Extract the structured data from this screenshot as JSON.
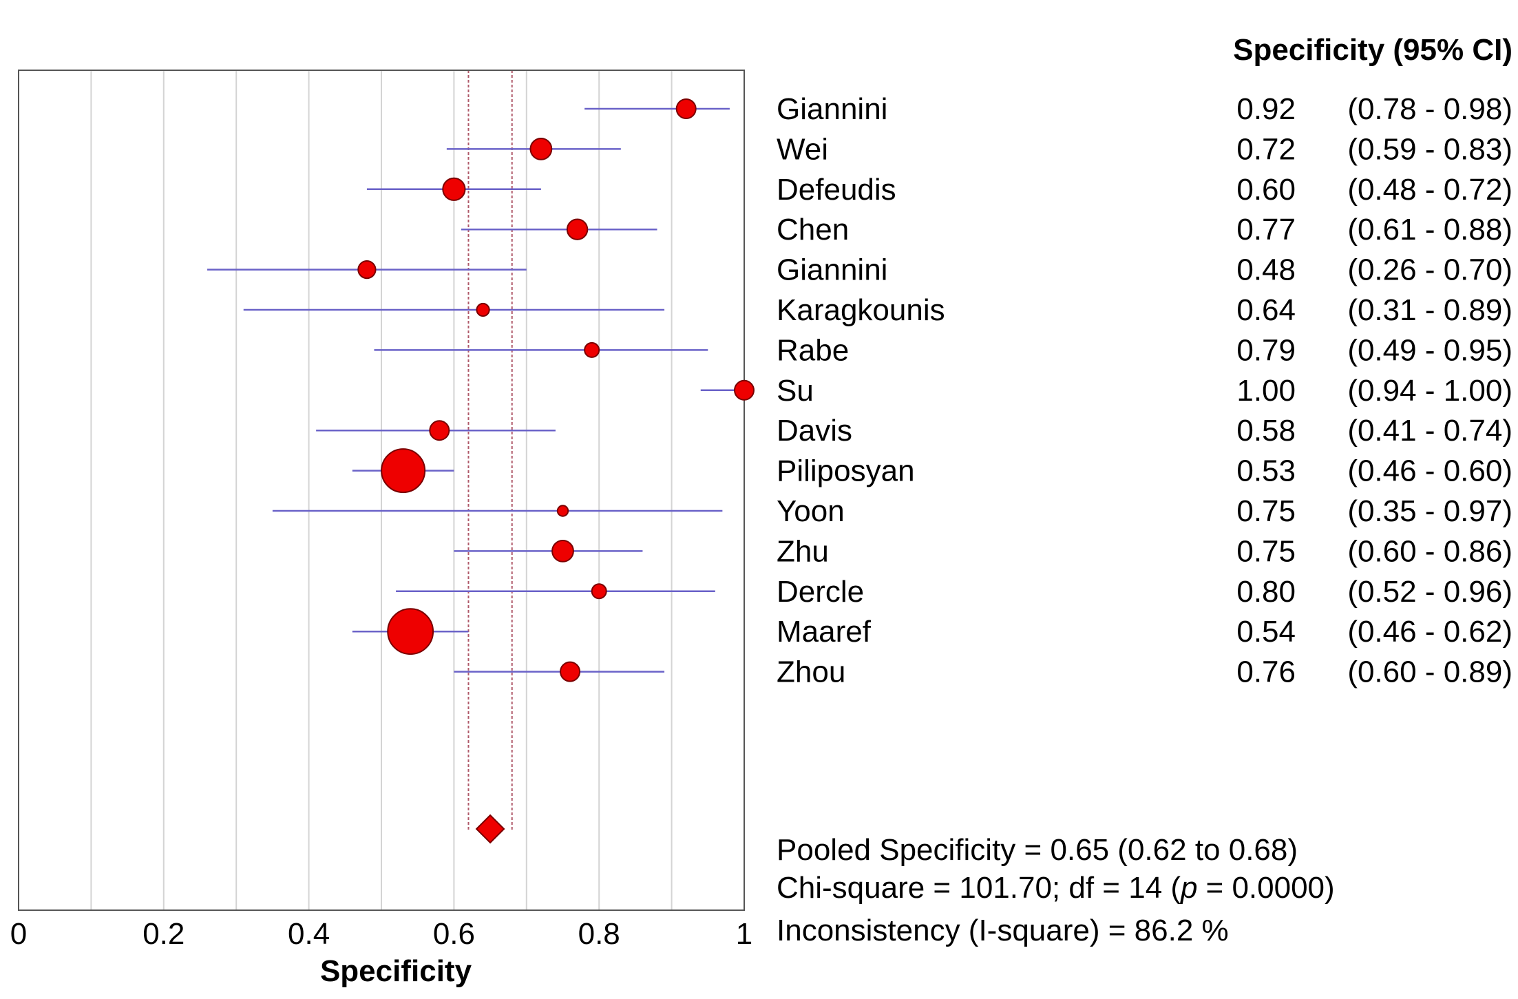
{
  "chart_data": {
    "type": "forest",
    "xlabel": "Specificity",
    "xlim": [
      0,
      1
    ],
    "x_ticks": [
      "0",
      "0.2",
      "0.4",
      "0.6",
      "0.8",
      "1"
    ],
    "x_tick_values": [
      0,
      0.2,
      0.4,
      0.6,
      0.8,
      1
    ],
    "grid": true,
    "column_header": "Specificity (95% CI)",
    "studies": [
      {
        "name": "Giannini",
        "estimate": 0.92,
        "lower": 0.78,
        "upper": 0.98,
        "est_text": "0.92",
        "ci_text": "(0.78 - 0.98)",
        "weight": 2
      },
      {
        "name": "Wei",
        "estimate": 0.72,
        "lower": 0.59,
        "upper": 0.83,
        "est_text": "0.72",
        "ci_text": "(0.59 - 0.83)",
        "weight": 2.2
      },
      {
        "name": "Defeudis",
        "estimate": 0.6,
        "lower": 0.48,
        "upper": 0.72,
        "est_text": "0.60",
        "ci_text": "(0.48 - 0.72)",
        "weight": 2.3
      },
      {
        "name": "Chen",
        "estimate": 0.77,
        "lower": 0.61,
        "upper": 0.88,
        "est_text": "0.77",
        "ci_text": "(0.61 - 0.88)",
        "weight": 2.1
      },
      {
        "name": "Giannini",
        "estimate": 0.48,
        "lower": 0.26,
        "upper": 0.7,
        "est_text": "0.48",
        "ci_text": "(0.26 - 0.70)",
        "weight": 1.8
      },
      {
        "name": "Karagkounis",
        "estimate": 0.64,
        "lower": 0.31,
        "upper": 0.89,
        "est_text": "0.64",
        "ci_text": "(0.31 - 0.89)",
        "weight": 1.3
      },
      {
        "name": "Rabe",
        "estimate": 0.79,
        "lower": 0.49,
        "upper": 0.95,
        "est_text": "0.79",
        "ci_text": "(0.49 - 0.95)",
        "weight": 1.5
      },
      {
        "name": "Su",
        "estimate": 1.0,
        "lower": 0.94,
        "upper": 1.0,
        "est_text": "1.00",
        "ci_text": "(0.94 - 1.00)",
        "weight": 2
      },
      {
        "name": "Davis",
        "estimate": 0.58,
        "lower": 0.41,
        "upper": 0.74,
        "est_text": "0.58",
        "ci_text": "(0.41 - 0.74)",
        "weight": 2
      },
      {
        "name": "Piliposyan",
        "estimate": 0.53,
        "lower": 0.46,
        "upper": 0.6,
        "est_text": "0.53",
        "ci_text": "(0.46 - 0.60)",
        "weight": 4.5
      },
      {
        "name": "Yoon",
        "estimate": 0.75,
        "lower": 0.35,
        "upper": 0.97,
        "est_text": "0.75",
        "ci_text": "(0.35 - 0.97)",
        "weight": 1.1
      },
      {
        "name": "Zhu",
        "estimate": 0.75,
        "lower": 0.6,
        "upper": 0.86,
        "est_text": "0.75",
        "ci_text": "(0.60 - 0.86)",
        "weight": 2.2
      },
      {
        "name": "Dercle",
        "estimate": 0.8,
        "lower": 0.52,
        "upper": 0.96,
        "est_text": "0.80",
        "ci_text": "(0.52 - 0.96)",
        "weight": 1.5
      },
      {
        "name": "Maaref",
        "estimate": 0.54,
        "lower": 0.46,
        "upper": 0.62,
        "est_text": "0.54",
        "ci_text": "(0.46 - 0.62)",
        "weight": 4.7
      },
      {
        "name": "Zhou",
        "estimate": 0.76,
        "lower": 0.6,
        "upper": 0.89,
        "est_text": "0.76",
        "ci_text": "(0.60 - 0.89)",
        "weight": 2
      }
    ],
    "pooled": {
      "estimate": 0.65,
      "lower": 0.62,
      "upper": 0.68
    },
    "summary": [
      "Pooled Specificity = 0.65 (0.62 to 0.68)",
      "Chi-square = 101.70; df =  14 (",
      "p",
      "= 0.0000)",
      "Inconsistency (I-square) = 86.2 %"
    ],
    "colors": {
      "marker": "#ee0000",
      "marker_stroke": "#7a0000",
      "ci_line": "#6a62c8",
      "grid": "#d4d4d4",
      "pooled_line": "#b05a6a"
    }
  }
}
